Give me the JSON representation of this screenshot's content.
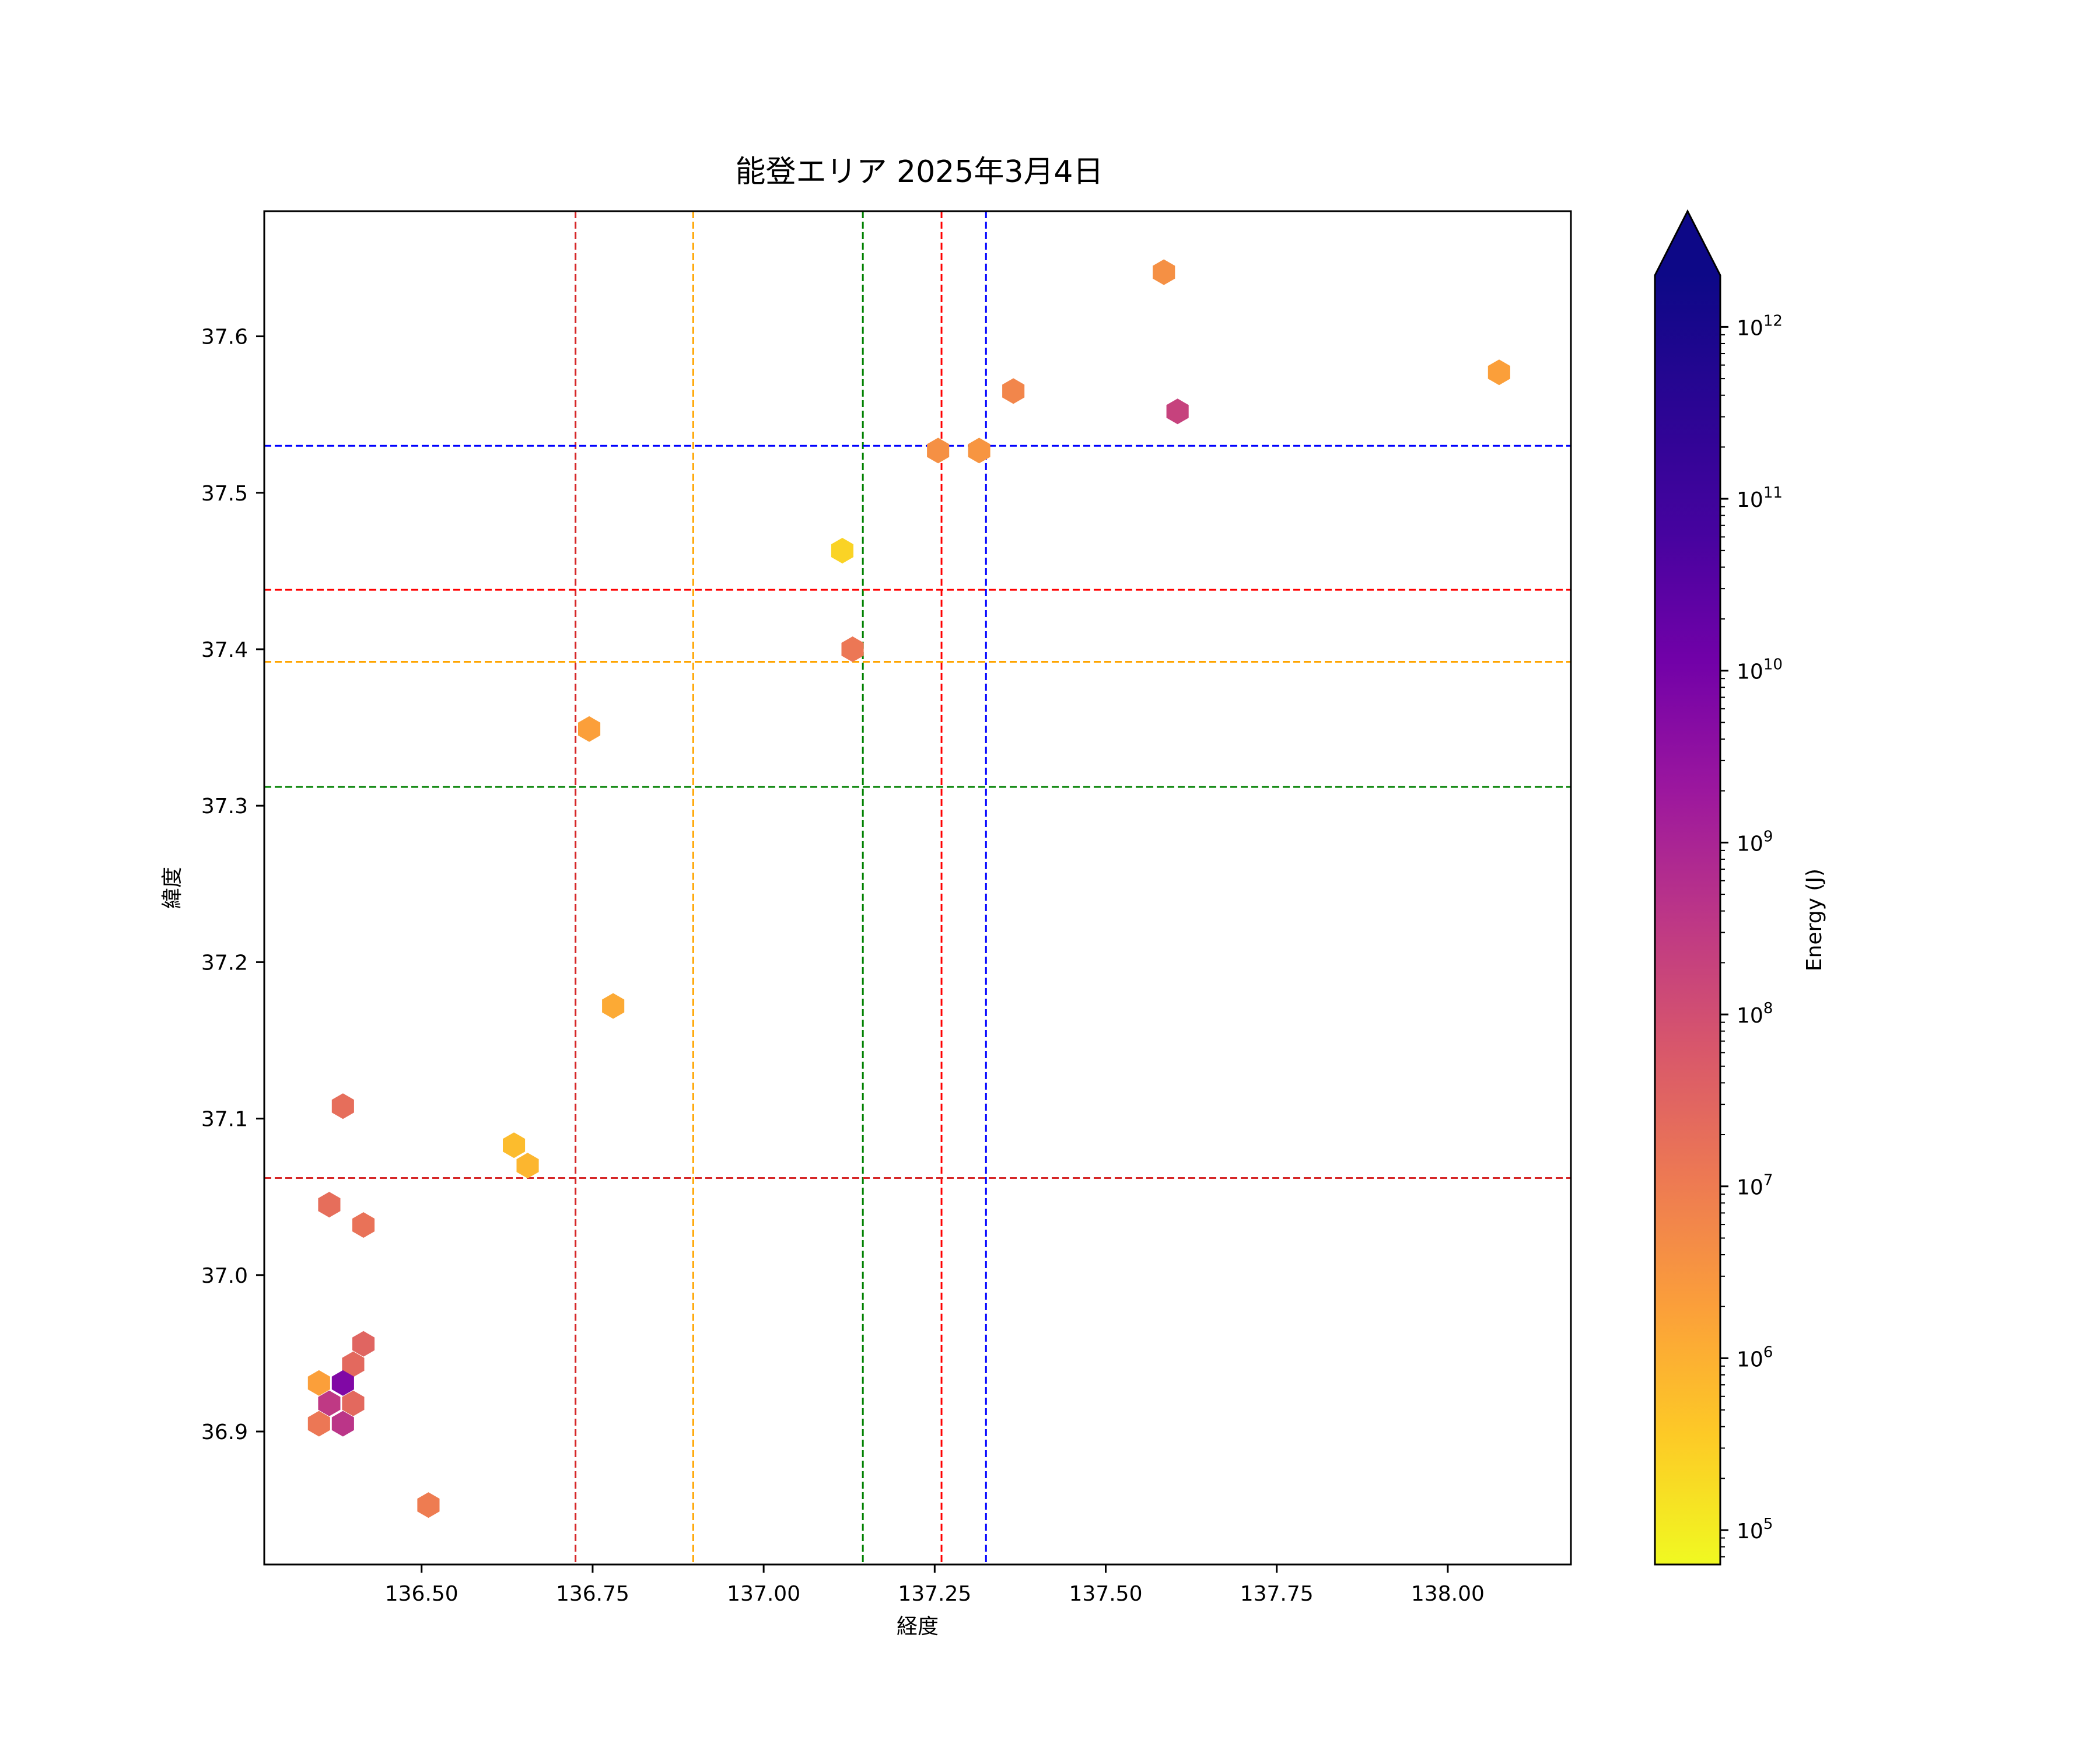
{
  "chart_data": {
    "type": "hexbin",
    "title": "能登エリア 2025年3月4日",
    "xlabel": "経度",
    "ylabel": "緯度",
    "xlim": [
      136.27,
      138.18
    ],
    "ylim": [
      36.815,
      37.68
    ],
    "xticks": [
      "136.50",
      "136.75",
      "137.00",
      "137.25",
      "137.50",
      "137.75",
      "138.00"
    ],
    "yticks": [
      "36.9",
      "37.0",
      "37.1",
      "37.2",
      "37.3",
      "37.4",
      "37.5",
      "37.6"
    ],
    "colorbar": {
      "label": "Energy (J)",
      "colormap": "plasma_r",
      "scale": "log",
      "range_exponent": [
        4.8,
        12.3
      ],
      "extend": "max",
      "ticks": [
        {
          "base": "10",
          "exp": "5",
          "value_exp": 5
        },
        {
          "base": "10",
          "exp": "6",
          "value_exp": 6
        },
        {
          "base": "10",
          "exp": "7",
          "value_exp": 7
        },
        {
          "base": "10",
          "exp": "8",
          "value_exp": 8
        },
        {
          "base": "10",
          "exp": "9",
          "value_exp": 9
        },
        {
          "base": "10",
          "exp": "10",
          "value_exp": 10
        },
        {
          "base": "10",
          "exp": "11",
          "value_exp": 11
        },
        {
          "base": "10",
          "exp": "12",
          "value_exp": 12
        }
      ]
    },
    "points": [
      {
        "lon": 137.585,
        "lat": 37.641,
        "energy_exp": 6.6
      },
      {
        "lon": 138.075,
        "lat": 37.577,
        "energy_exp": 6.3
      },
      {
        "lon": 137.365,
        "lat": 37.565,
        "energy_exp": 6.8
      },
      {
        "lon": 137.605,
        "lat": 37.552,
        "energy_exp": 8.3
      },
      {
        "lon": 137.255,
        "lat": 37.527,
        "energy_exp": 6.6
      },
      {
        "lon": 137.315,
        "lat": 37.527,
        "energy_exp": 6.5
      },
      {
        "lon": 137.115,
        "lat": 37.463,
        "energy_exp": 5.4
      },
      {
        "lon": 137.13,
        "lat": 37.4,
        "energy_exp": 7.1
      },
      {
        "lon": 136.745,
        "lat": 37.349,
        "energy_exp": 6.3
      },
      {
        "lon": 136.78,
        "lat": 37.172,
        "energy_exp": 6.1
      },
      {
        "lon": 136.385,
        "lat": 37.108,
        "energy_exp": 7.3
      },
      {
        "lon": 136.635,
        "lat": 37.083,
        "energy_exp": 5.8
      },
      {
        "lon": 136.655,
        "lat": 37.07,
        "energy_exp": 5.9
      },
      {
        "lon": 136.365,
        "lat": 37.045,
        "energy_exp": 7.3
      },
      {
        "lon": 136.415,
        "lat": 37.032,
        "energy_exp": 7.2
      },
      {
        "lon": 136.415,
        "lat": 36.956,
        "energy_exp": 7.5
      },
      {
        "lon": 136.4,
        "lat": 36.943,
        "energy_exp": 7.4
      },
      {
        "lon": 136.35,
        "lat": 36.931,
        "energy_exp": 6.3
      },
      {
        "lon": 136.385,
        "lat": 36.931,
        "energy_exp": 9.8
      },
      {
        "lon": 136.365,
        "lat": 36.918,
        "energy_exp": 8.5
      },
      {
        "lon": 136.4,
        "lat": 36.918,
        "energy_exp": 7.4
      },
      {
        "lon": 136.35,
        "lat": 36.905,
        "energy_exp": 7.1
      },
      {
        "lon": 136.385,
        "lat": 36.905,
        "energy_exp": 8.6
      },
      {
        "lon": 136.51,
        "lat": 36.853,
        "energy_exp": 7.0
      }
    ],
    "vlines": [
      {
        "x": 136.725,
        "color": "#d62728"
      },
      {
        "x": 136.897,
        "color": "#ffa500"
      },
      {
        "x": 137.145,
        "color": "#008000"
      },
      {
        "x": 137.26,
        "color": "#ff0000"
      },
      {
        "x": 137.325,
        "color": "#0000ff"
      }
    ],
    "hlines": [
      {
        "y": 37.53,
        "color": "#0000ff"
      },
      {
        "y": 37.438,
        "color": "#ff0000"
      },
      {
        "y": 37.392,
        "color": "#ffa500"
      },
      {
        "y": 37.312,
        "color": "#008000"
      },
      {
        "y": 37.062,
        "color": "#d62728"
      }
    ]
  }
}
